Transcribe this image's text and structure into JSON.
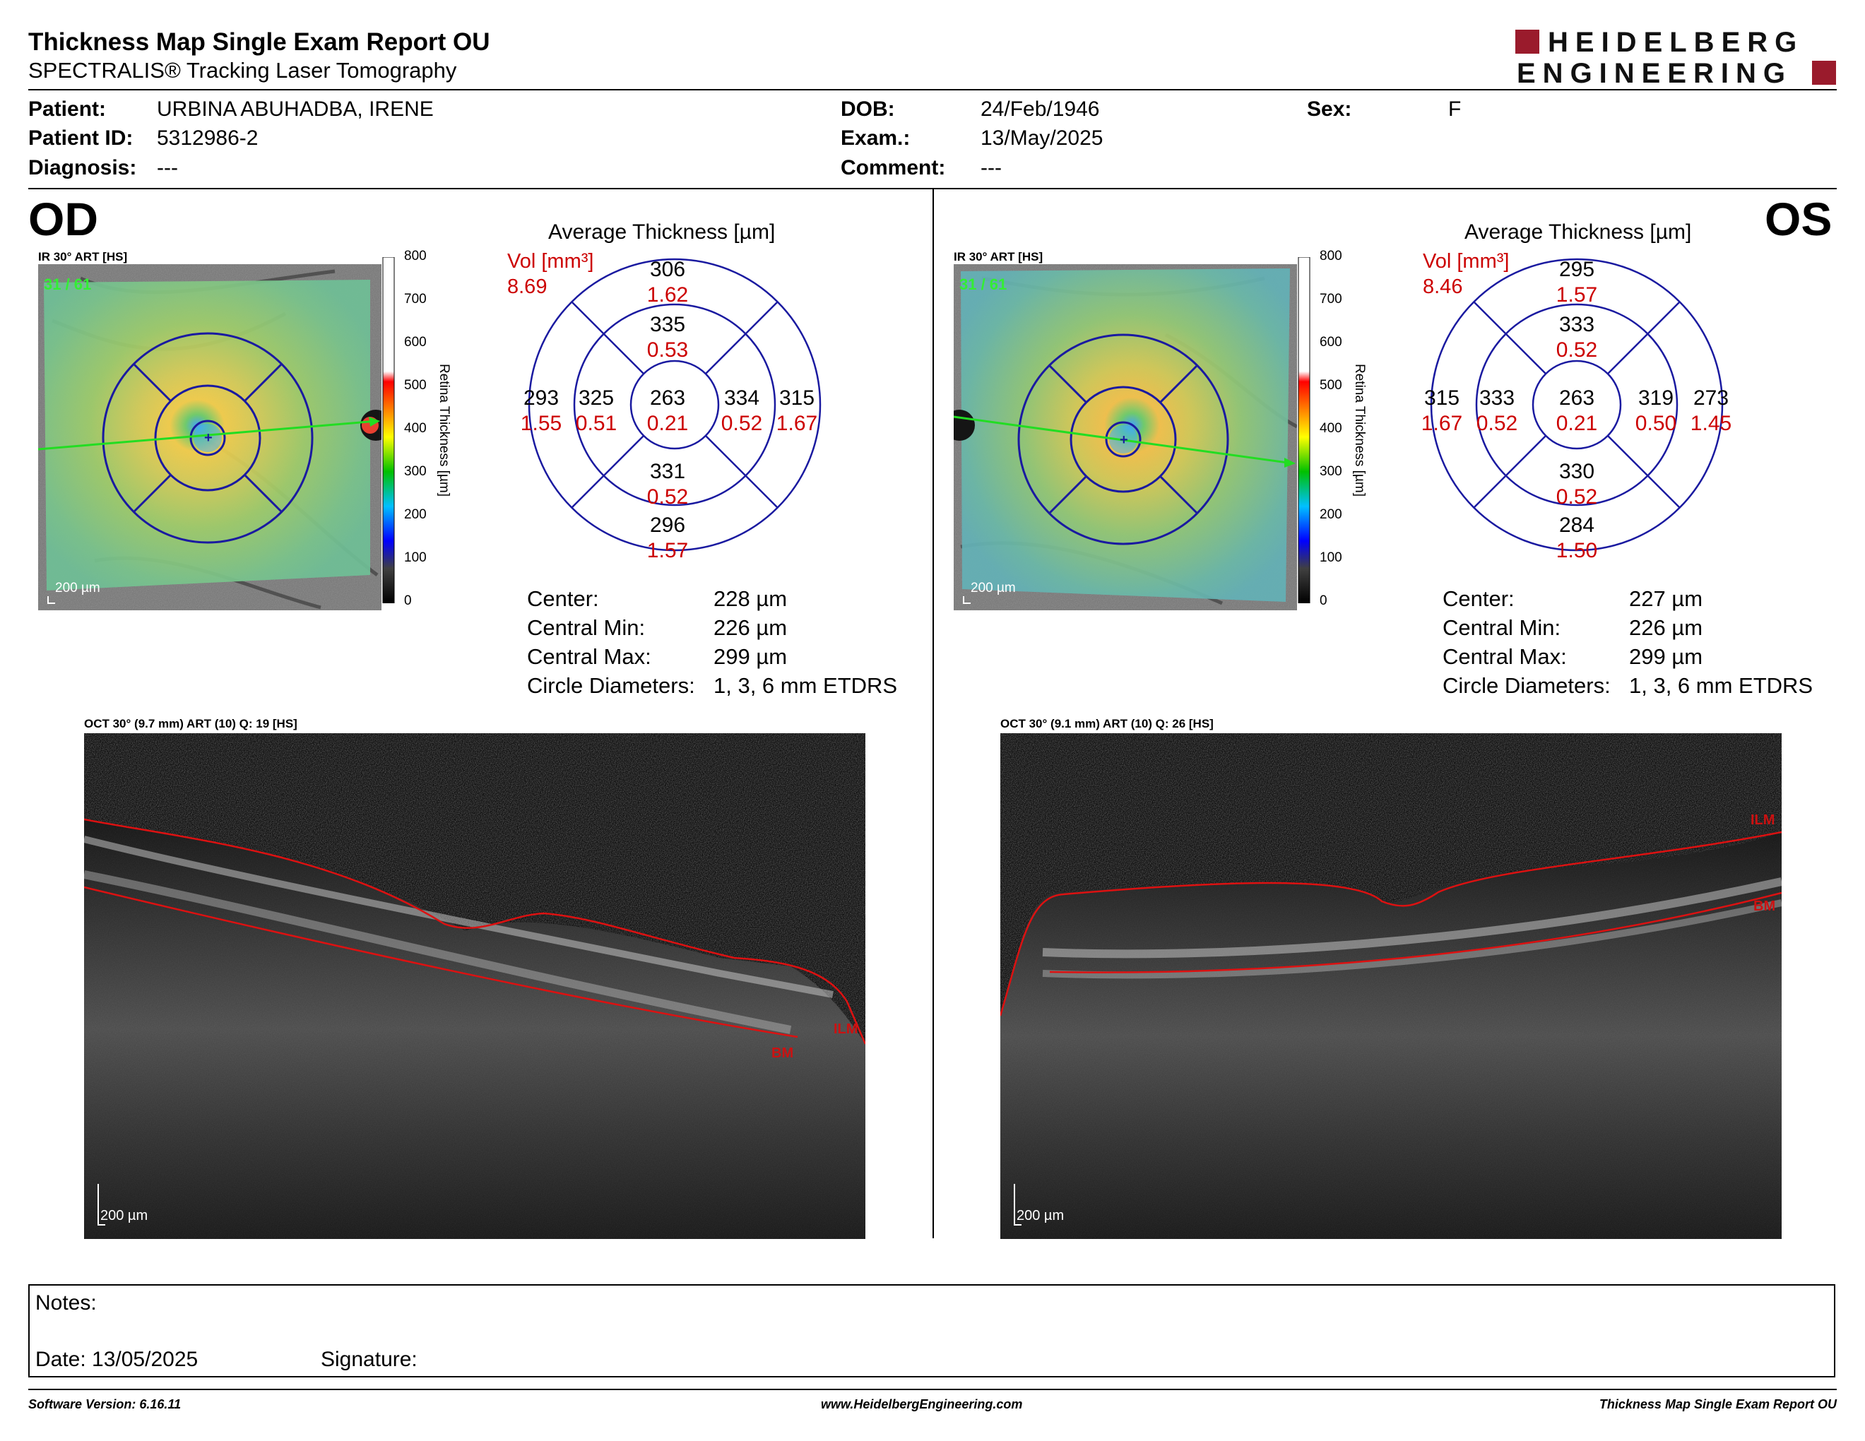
{
  "header": {
    "title": "Thickness Map Single Exam Report OU",
    "subtitle": "SPECTRALIS® Tracking Laser Tomography",
    "logo_line1": "HEIDELBERG",
    "logo_line2": "ENGINEERING",
    "logo_color": "#9a1b2c"
  },
  "patient": {
    "patient_label": "Patient:",
    "patient_value": "URBINA ABUHADBA, IRENE",
    "id_label": "Patient ID:",
    "id_value": "5312986-2",
    "diagnosis_label": "Diagnosis:",
    "diagnosis_value": "---",
    "dob_label": "DOB:",
    "dob_value": "24/Feb/1946",
    "exam_label": "Exam.:",
    "exam_value": "13/May/2025",
    "comment_label": "Comment:",
    "comment_value": "---",
    "sex_label": "Sex:",
    "sex_value": "F"
  },
  "colorscale": {
    "ticks": [
      "800",
      "700",
      "600",
      "500",
      "400",
      "300",
      "200",
      "100",
      "0"
    ],
    "label": "Retina Thickness [µm]"
  },
  "od": {
    "eye": "OD",
    "ir_caption": "IR 30° ART [HS]",
    "ir_count": "31 / 61",
    "ir_scalebar": "200 µm",
    "etdrs_title": "Average Thickness [µm]",
    "vol_label": "Vol [mm³]",
    "vol_total": "8.69",
    "sectors": {
      "outer_sup": {
        "t": "306",
        "v": "1.62"
      },
      "inner_sup": {
        "t": "335",
        "v": "0.53"
      },
      "outer_left": {
        "t": "293",
        "v": "1.55"
      },
      "inner_left": {
        "t": "325",
        "v": "0.51"
      },
      "center": {
        "t": "263",
        "v": "0.21"
      },
      "inner_right": {
        "t": "334",
        "v": "0.52"
      },
      "outer_right": {
        "t": "315",
        "v": "1.67"
      },
      "inner_inf": {
        "t": "331",
        "v": "0.52"
      },
      "outer_inf": {
        "t": "296",
        "v": "1.57"
      }
    },
    "stats": [
      {
        "label": "Center:",
        "value": "228 µm"
      },
      {
        "label": "Central Min:",
        "value": "226 µm"
      },
      {
        "label": "Central Max:",
        "value": "299 µm"
      },
      {
        "label": "Circle Diameters:",
        "value": "1, 3, 6 mm ETDRS"
      }
    ],
    "oct_caption": "OCT 30° (9.7 mm) ART (10) Q: 19 [HS]",
    "oct_scalebar": "200 µm",
    "ilm": "ILM",
    "bm": "BM"
  },
  "os": {
    "eye": "OS",
    "ir_caption": "IR 30° ART [HS]",
    "ir_count": "31 / 61",
    "ir_scalebar": "200 µm",
    "etdrs_title": "Average Thickness [µm]",
    "vol_label": "Vol [mm³]",
    "vol_total": "8.46",
    "sectors": {
      "outer_sup": {
        "t": "295",
        "v": "1.57"
      },
      "inner_sup": {
        "t": "333",
        "v": "0.52"
      },
      "outer_left": {
        "t": "315",
        "v": "1.67"
      },
      "inner_left": {
        "t": "333",
        "v": "0.52"
      },
      "center": {
        "t": "263",
        "v": "0.21"
      },
      "inner_right": {
        "t": "319",
        "v": "0.50"
      },
      "outer_right": {
        "t": "273",
        "v": "1.45"
      },
      "inner_inf": {
        "t": "330",
        "v": "0.52"
      },
      "outer_inf": {
        "t": "284",
        "v": "1.50"
      }
    },
    "stats": [
      {
        "label": "Center:",
        "value": "227 µm"
      },
      {
        "label": "Central Min:",
        "value": "226 µm"
      },
      {
        "label": "Central Max:",
        "value": "299 µm"
      },
      {
        "label": "Circle Diameters:",
        "value": "1, 3, 6 mm ETDRS"
      }
    ],
    "oct_caption": "OCT 30° (9.1 mm) ART (10) Q: 26 [HS]",
    "oct_scalebar": "200 µm",
    "ilm": "ILM",
    "bm": "BM"
  },
  "notes": {
    "notes_label": "Notes:",
    "date_label": "Date: 13/05/2025",
    "signature_label": "Signature:"
  },
  "footer": {
    "software": "Software Version: 6.16.11",
    "website": "www.HeidelbergEngineering.com",
    "report_name": "Thickness Map Single Exam Report OU"
  }
}
